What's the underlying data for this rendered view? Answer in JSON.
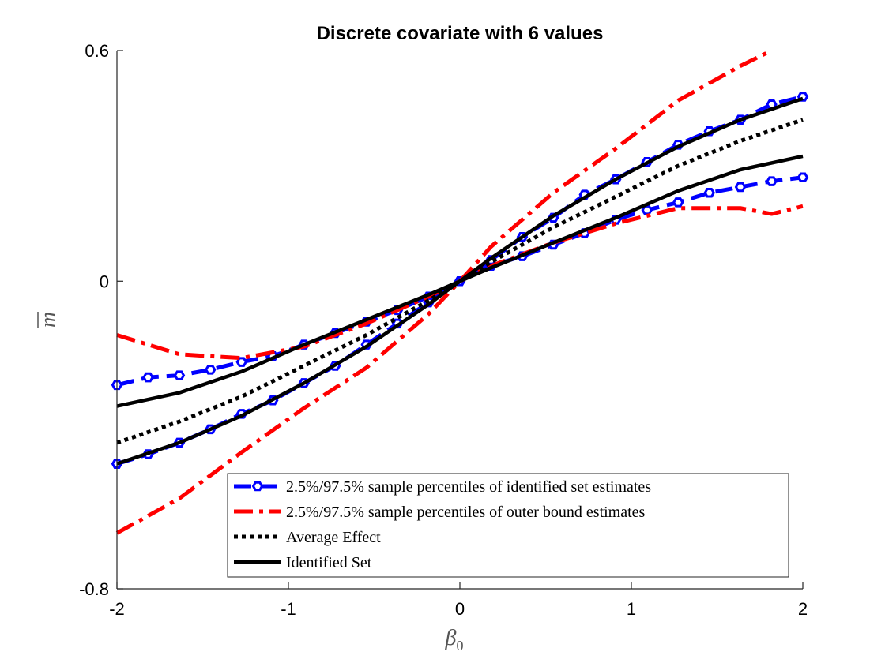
{
  "chart_data": {
    "type": "line",
    "title": "Discrete covariate with 6 values",
    "xlabel": "β",
    "xlabel_sub": "0",
    "ylabel": "m",
    "xlim": [
      -2,
      2
    ],
    "ylim": [
      -0.8,
      0.6
    ],
    "xticks": [
      -2,
      -1,
      0,
      1,
      2
    ],
    "xtick_labels": [
      "-2",
      "-1",
      "0",
      "1",
      "2"
    ],
    "yticks": [
      -0.8,
      0,
      0.6
    ],
    "ytick_labels": [
      "-0.8",
      "0",
      "0.6"
    ],
    "legend_position": "bottom-right",
    "series": [
      {
        "name": "identified-upper",
        "legend": "2.5%/97.5% sample percentiles of identified set estimates",
        "color": "#0000ff",
        "style": "dashed-marker",
        "x": [
          -2,
          -1.818,
          -1.636,
          -1.455,
          -1.273,
          -1.091,
          -0.909,
          -0.727,
          -0.545,
          -0.364,
          -0.182,
          0,
          0.182,
          0.364,
          0.545,
          0.727,
          0.909,
          1.091,
          1.273,
          1.455,
          1.636,
          1.818,
          2
        ],
        "y": [
          -0.27,
          -0.25,
          -0.245,
          -0.23,
          -0.21,
          -0.195,
          -0.165,
          -0.135,
          -0.105,
          -0.075,
          -0.04,
          0,
          0.04,
          0.065,
          0.095,
          0.125,
          0.16,
          0.185,
          0.205,
          0.23,
          0.245,
          0.26,
          0.27
        ]
      },
      {
        "name": "identified-lower",
        "legend": "",
        "color": "#0000ff",
        "style": "dashed-marker",
        "x": [
          -2,
          -1.818,
          -1.636,
          -1.455,
          -1.273,
          -1.091,
          -0.909,
          -0.727,
          -0.545,
          -0.364,
          -0.182,
          0,
          0.182,
          0.364,
          0.545,
          0.727,
          0.909,
          1.091,
          1.273,
          1.455,
          1.636,
          1.818,
          2
        ],
        "y": [
          -0.475,
          -0.45,
          -0.42,
          -0.385,
          -0.345,
          -0.31,
          -0.265,
          -0.22,
          -0.165,
          -0.11,
          -0.055,
          0,
          0.055,
          0.115,
          0.165,
          0.225,
          0.265,
          0.31,
          0.355,
          0.39,
          0.42,
          0.46,
          0.48
        ]
      },
      {
        "name": "outer-upper",
        "legend": "2.5%/97.5% sample percentiles of outer bound estimates",
        "color": "#ff0000",
        "style": "dash-dot",
        "x": [
          -2,
          -1.636,
          -1.273,
          -0.909,
          -0.545,
          -0.182,
          0,
          0.182,
          0.545,
          0.909,
          1.273,
          1.636,
          1.818,
          2
        ],
        "y": [
          -0.14,
          -0.19,
          -0.2,
          -0.17,
          -0.11,
          -0.04,
          0,
          0.04,
          0.1,
          0.15,
          0.19,
          0.19,
          0.175,
          0.195
        ]
      },
      {
        "name": "outer-lower",
        "legend": "",
        "color": "#ff0000",
        "style": "dash-dot",
        "x": [
          -2,
          -1.636,
          -1.273,
          -0.909,
          -0.545,
          -0.182,
          0,
          0.182,
          0.545,
          0.909,
          1.273,
          1.636,
          1.818
        ],
        "y": [
          -0.655,
          -0.565,
          -0.445,
          -0.33,
          -0.225,
          -0.085,
          0,
          0.09,
          0.23,
          0.345,
          0.47,
          0.56,
          0.6
        ]
      },
      {
        "name": "average-effect",
        "legend": "Average Effect",
        "color": "#000000",
        "style": "dotted",
        "x": [
          -2,
          -1.636,
          -1.273,
          -0.909,
          -0.545,
          -0.182,
          0,
          0.182,
          0.545,
          0.909,
          1.273,
          1.636,
          2
        ],
        "y": [
          -0.42,
          -0.365,
          -0.3,
          -0.22,
          -0.14,
          -0.05,
          0,
          0.05,
          0.14,
          0.22,
          0.3,
          0.365,
          0.42
        ]
      },
      {
        "name": "identified-set-upper",
        "legend": "Identified Set",
        "color": "#000000",
        "style": "solid",
        "x": [
          -2,
          -1.636,
          -1.273,
          -0.909,
          -0.545,
          -0.182,
          0,
          0.182,
          0.545,
          0.909,
          1.273,
          1.636,
          2
        ],
        "y": [
          -0.325,
          -0.29,
          -0.235,
          -0.165,
          -0.1,
          -0.035,
          0,
          0.035,
          0.1,
          0.165,
          0.235,
          0.29,
          0.325
        ]
      },
      {
        "name": "identified-set-lower",
        "legend": "",
        "color": "#000000",
        "style": "solid",
        "x": [
          -2,
          -1.636,
          -1.273,
          -0.909,
          -0.545,
          -0.182,
          0,
          0.182,
          0.545,
          0.909,
          1.273,
          1.636,
          2
        ],
        "y": [
          -0.475,
          -0.42,
          -0.35,
          -0.265,
          -0.17,
          -0.06,
          0,
          0.06,
          0.17,
          0.265,
          0.35,
          0.42,
          0.475
        ]
      }
    ]
  }
}
